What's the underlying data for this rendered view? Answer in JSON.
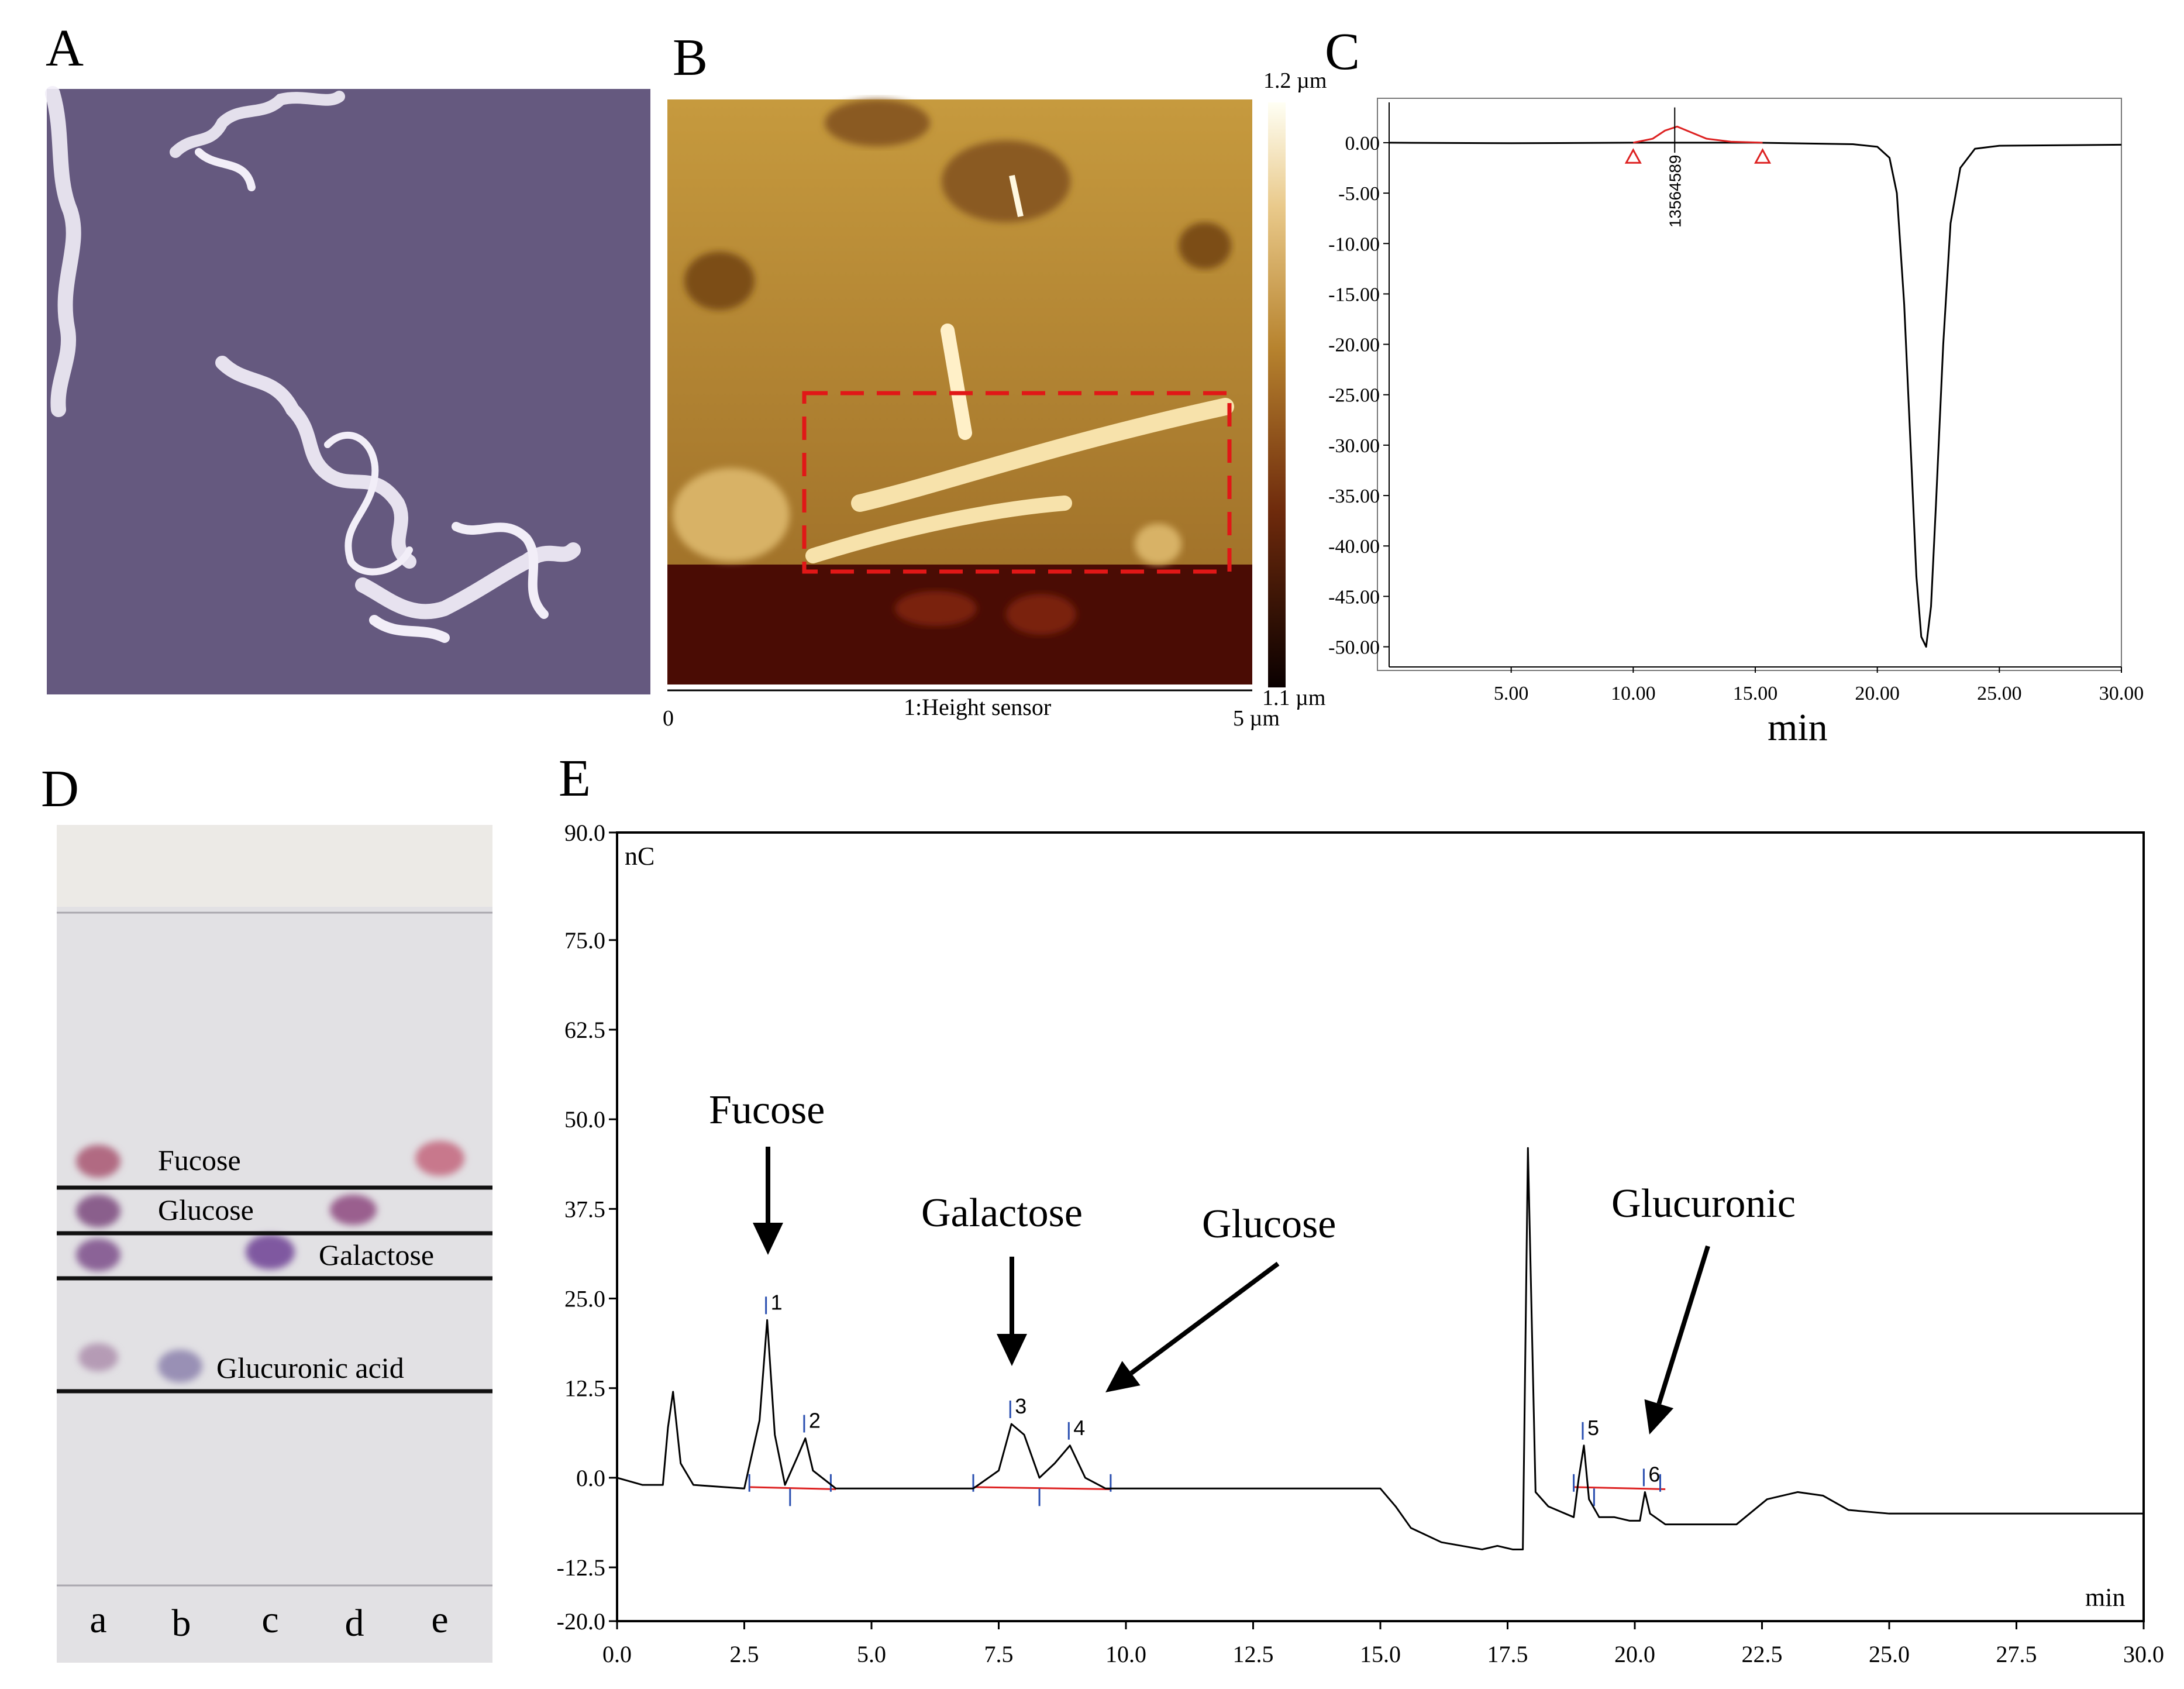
{
  "panels": {
    "A": {
      "label": "A"
    },
    "B": {
      "label": "B",
      "scale_top": "1.2 µm",
      "scale_bottom": "1.1 µm",
      "axis_start": "0",
      "axis_end": "5 µm",
      "channel": "1:Height sensor"
    },
    "C": {
      "label": "C",
      "peak_label": "13564589"
    },
    "D": {
      "label": "D",
      "band_labels": [
        "Fucose",
        "Glucose",
        "Galactose",
        "Glucuronic acid"
      ],
      "lanes": [
        "a",
        "b",
        "c",
        "d",
        "e"
      ]
    },
    "E": {
      "label": "E",
      "y_unit": "nC",
      "x_unit": "min",
      "peak_numbers": [
        "1",
        "2",
        "3",
        "4",
        "5",
        "6"
      ]
    }
  },
  "chart_data": [
    {
      "panel": "C",
      "type": "line",
      "title": "",
      "xlabel": "min",
      "ylabel": "",
      "xlim": [
        0,
        30
      ],
      "ylim": [
        -52,
        4
      ],
      "x_ticks": [
        "5.00",
        "10.00",
        "15.00",
        "20.00",
        "25.00",
        "30.00"
      ],
      "y_ticks": [
        "0.00",
        "-5.00",
        "-10.00",
        "-15.00",
        "-20.00",
        "-25.00",
        "-30.00",
        "-35.00",
        "-40.00",
        "-45.00",
        "-50.00"
      ],
      "series": [
        {
          "name": "signal",
          "x": [
            0,
            5,
            10,
            15,
            19,
            20,
            20.5,
            20.8,
            21.1,
            21.4,
            21.6,
            21.8,
            22.0,
            22.2,
            22.4,
            22.7,
            23.0,
            23.4,
            24,
            25,
            30
          ],
          "values": [
            0,
            -0.05,
            0,
            0,
            -0.15,
            -0.4,
            -1.5,
            -5,
            -16,
            -32,
            -43,
            -49,
            -50,
            -46,
            -36,
            -20,
            -8,
            -2.5,
            -0.6,
            -0.3,
            -0.2
          ]
        },
        {
          "name": "fit",
          "x": [
            10,
            10.8,
            11.3,
            11.8,
            12.3,
            13,
            14,
            15.3
          ],
          "values": [
            0,
            0.4,
            1.2,
            1.6,
            1.1,
            0.4,
            0.1,
            0
          ]
        }
      ],
      "markers": [
        {
          "x": 10.0,
          "y": -0.6
        },
        {
          "x": 15.3,
          "y": -0.6
        }
      ],
      "annotations": [
        {
          "x": 11.7,
          "text": "13564589"
        }
      ]
    },
    {
      "panel": "E",
      "type": "line",
      "title": "",
      "xlabel": "min",
      "ylabel": "nC",
      "xlim": [
        0,
        30
      ],
      "ylim": [
        -20,
        90
      ],
      "x_ticks": [
        "0.0",
        "2.5",
        "5.0",
        "7.5",
        "10.0",
        "12.5",
        "15.0",
        "17.5",
        "20.0",
        "22.5",
        "25.0",
        "27.5",
        "30.0"
      ],
      "y_ticks": [
        "90.0",
        "75.0",
        "62.5",
        "50.0",
        "37.5",
        "25.0",
        "12.5",
        "0.0",
        "-12.5",
        "-20.0"
      ],
      "series": [
        {
          "name": "signal",
          "x": [
            0,
            0.5,
            0.9,
            1.0,
            1.1,
            1.25,
            1.5,
            2.5,
            2.8,
            2.95,
            3.1,
            3.3,
            3.55,
            3.7,
            3.85,
            4.3,
            7.0,
            7.5,
            7.75,
            8.0,
            8.3,
            8.6,
            8.9,
            9.2,
            9.6,
            12,
            15,
            15.3,
            15.6,
            16.2,
            17,
            17.3,
            17.6,
            17.8,
            17.9,
            18.05,
            18.3,
            18.8,
            18.9,
            19.0,
            19.1,
            19.3,
            19.6,
            19.9,
            20.1,
            20.2,
            20.3,
            20.6,
            22,
            22.6,
            23.2,
            23.7,
            24.2,
            25,
            30
          ],
          "values": [
            0,
            -1,
            -1,
            7,
            12,
            2,
            -1,
            -1.5,
            8,
            22,
            6,
            -1,
            3,
            5.5,
            1,
            -1.5,
            -1.5,
            1,
            7.5,
            6,
            0,
            2,
            4.5,
            0,
            -1.5,
            -1.5,
            -1.5,
            -4,
            -7,
            -9,
            -10,
            -9.5,
            -10,
            -10,
            46,
            -2,
            -4,
            -5.5,
            0,
            4.5,
            -3,
            -5.5,
            -5.5,
            -6,
            -6,
            -2,
            -5,
            -6.5,
            -6.5,
            -3,
            -2,
            -2.5,
            -4.5,
            -5,
            -5
          ]
        }
      ],
      "peaks": [
        {
          "id": "1",
          "x": 2.95,
          "y": 22,
          "name": "Fucose"
        },
        {
          "id": "2",
          "x": 3.7,
          "y": 5.5
        },
        {
          "id": "3",
          "x": 7.75,
          "y": 7.5,
          "name": "Galactose"
        },
        {
          "id": "4",
          "x": 8.9,
          "y": 4.5,
          "name": "Glucose"
        },
        {
          "id": "5",
          "x": 19.0,
          "y": 4.5
        },
        {
          "id": "6",
          "x": 20.2,
          "y": -2,
          "name": "Glucuronic"
        }
      ],
      "annotations": [
        {
          "text": "Fucose",
          "target_peak": "1"
        },
        {
          "text": "Galactose",
          "target_peak": "3"
        },
        {
          "text": "Glucose",
          "target_peak": "4"
        },
        {
          "text": "Glucuronic",
          "target_peak": "6"
        }
      ]
    }
  ]
}
